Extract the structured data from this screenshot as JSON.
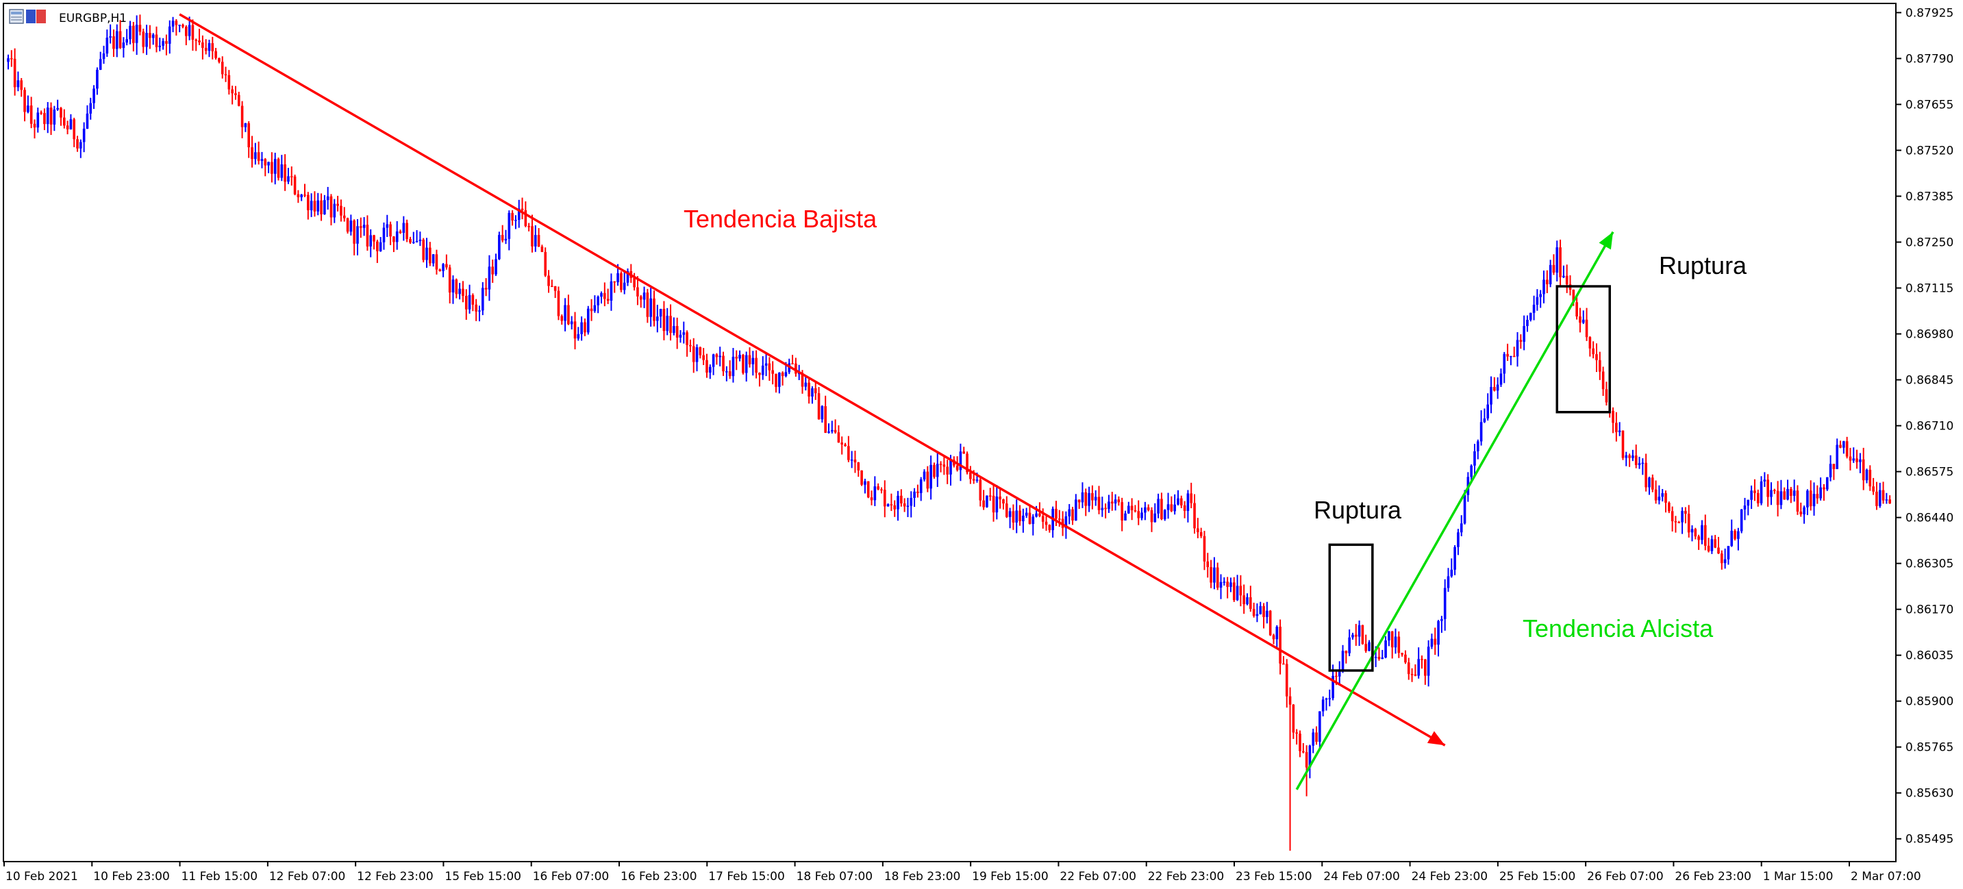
{
  "window": {
    "symbol_title": "EURGBP,H1"
  },
  "colors": {
    "bull": "#0000ff",
    "bear": "#ff0000",
    "downtrend": "#ff0000",
    "uptrend": "#00dd00",
    "frame": "#000000",
    "background": "#ffffff"
  },
  "chart_data": {
    "type": "candlestick",
    "symbol": "EURGBP",
    "timeframe": "H1",
    "y_range": [
      0.8543,
      0.8795
    ],
    "y_ticks": [
      "0.87925",
      "0.87790",
      "0.87655",
      "0.87520",
      "0.87385",
      "0.87250",
      "0.87115",
      "0.86980",
      "0.86845",
      "0.86710",
      "0.86575",
      "0.86440",
      "0.86305",
      "0.86170",
      "0.86035",
      "0.85900",
      "0.85765",
      "0.85630",
      "0.85495"
    ],
    "x_ticks": [
      "10 Feb 2021",
      "10 Feb 23:00",
      "11 Feb 15:00",
      "12 Feb 07:00",
      "12 Feb 23:00",
      "15 Feb 15:00",
      "16 Feb 07:00",
      "16 Feb 23:00",
      "17 Feb 15:00",
      "18 Feb 07:00",
      "18 Feb 23:00",
      "19 Feb 15:00",
      "22 Feb 07:00",
      "22 Feb 23:00",
      "23 Feb 15:00",
      "24 Feb 07:00",
      "24 Feb 23:00",
      "25 Feb 15:00",
      "26 Feb 07:00",
      "26 Feb 23:00",
      "1 Mar 15:00",
      "2 Mar 07:00"
    ],
    "price_path": [
      [
        0,
        0.8778
      ],
      [
        7,
        0.876
      ],
      [
        15,
        0.8762
      ],
      [
        22,
        0.8755
      ],
      [
        30,
        0.8783
      ],
      [
        38,
        0.8787
      ],
      [
        46,
        0.8784
      ],
      [
        52,
        0.879
      ],
      [
        60,
        0.8783
      ],
      [
        67,
        0.8771
      ],
      [
        75,
        0.8748
      ],
      [
        82,
        0.8746
      ],
      [
        90,
        0.8738
      ],
      [
        97,
        0.8735
      ],
      [
        105,
        0.8728
      ],
      [
        112,
        0.8725
      ],
      [
        120,
        0.873
      ],
      [
        127,
        0.8722
      ],
      [
        135,
        0.8712
      ],
      [
        143,
        0.8705
      ],
      [
        150,
        0.8728
      ],
      [
        155,
        0.8735
      ],
      [
        160,
        0.8725
      ],
      [
        165,
        0.871
      ],
      [
        172,
        0.8698
      ],
      [
        180,
        0.8708
      ],
      [
        188,
        0.8715
      ],
      [
        195,
        0.8705
      ],
      [
        203,
        0.8698
      ],
      [
        210,
        0.869
      ],
      [
        218,
        0.8688
      ],
      [
        225,
        0.869
      ],
      [
        232,
        0.8685
      ],
      [
        238,
        0.869
      ],
      [
        242,
        0.8683
      ],
      [
        248,
        0.8672
      ],
      [
        255,
        0.8662
      ],
      [
        262,
        0.8652
      ],
      [
        270,
        0.8648
      ],
      [
        278,
        0.8655
      ],
      [
        285,
        0.866
      ],
      [
        290,
        0.8662
      ],
      [
        297,
        0.8648
      ],
      [
        305,
        0.8645
      ],
      [
        312,
        0.8642
      ],
      [
        320,
        0.8644
      ],
      [
        328,
        0.865
      ],
      [
        335,
        0.8648
      ],
      [
        342,
        0.8643
      ],
      [
        350,
        0.8647
      ],
      [
        358,
        0.8648
      ],
      [
        365,
        0.8628
      ],
      [
        372,
        0.8622
      ],
      [
        378,
        0.8618
      ],
      [
        385,
        0.861
      ],
      [
        390,
        0.8582
      ],
      [
        394,
        0.8573
      ],
      [
        400,
        0.859
      ],
      [
        405,
        0.8603
      ],
      [
        410,
        0.861
      ],
      [
        415,
        0.8605
      ],
      [
        420,
        0.8608
      ],
      [
        425,
        0.86
      ],
      [
        430,
        0.86
      ],
      [
        435,
        0.8615
      ],
      [
        440,
        0.864
      ],
      [
        445,
        0.8665
      ],
      [
        450,
        0.8683
      ],
      [
        455,
        0.869
      ],
      [
        460,
        0.8698
      ],
      [
        465,
        0.871
      ],
      [
        470,
        0.872
      ],
      [
        474,
        0.8712
      ],
      [
        478,
        0.87
      ],
      [
        482,
        0.8688
      ],
      [
        486,
        0.8675
      ],
      [
        490,
        0.8665
      ],
      [
        496,
        0.8658
      ],
      [
        502,
        0.8648
      ],
      [
        508,
        0.8643
      ],
      [
        514,
        0.864
      ],
      [
        520,
        0.863
      ],
      [
        526,
        0.8645
      ],
      [
        532,
        0.8652
      ],
      [
        538,
        0.865
      ],
      [
        544,
        0.8648
      ],
      [
        550,
        0.8653
      ],
      [
        556,
        0.8665
      ],
      [
        562,
        0.8658
      ],
      [
        567,
        0.865
      ],
      [
        571,
        0.8645
      ]
    ],
    "trendlines": [
      {
        "name": "downtrend",
        "from": [
          52,
          0.8792
        ],
        "to": [
          436,
          0.8577
        ],
        "arrow": true,
        "color": "#ff0000"
      },
      {
        "name": "uptrend",
        "from": [
          391,
          0.8564
        ],
        "to": [
          487,
          0.8728
        ],
        "arrow": true,
        "color": "#00dd00"
      }
    ],
    "boxes": [
      {
        "name": "ruptura-box-1",
        "x1": 401,
        "x2": 414,
        "y1": 0.8636,
        "y2": 0.8599
      },
      {
        "name": "ruptura-box-2",
        "x1": 470,
        "x2": 486,
        "y1": 0.8712,
        "y2": 0.8675
      }
    ],
    "annotations": {
      "downtrend_label": "Tendencia Bajista",
      "uptrend_label": "Tendencia Alcista",
      "breakout_label_1": "Ruptura",
      "breakout_label_2": "Ruptura"
    }
  }
}
